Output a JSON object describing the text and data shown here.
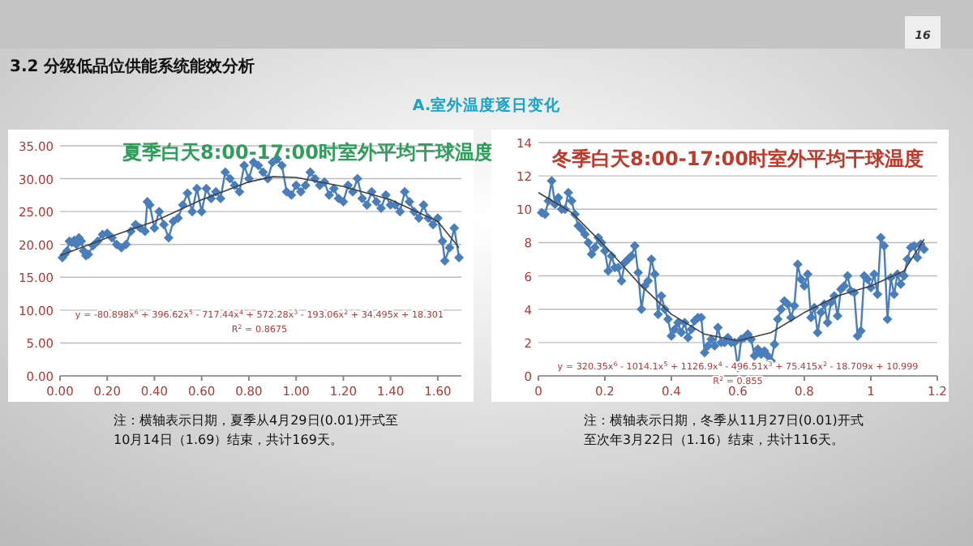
{
  "chart_data": [
    {
      "type": "line",
      "title": "夏季白天8:00-17:00时室外平均干球温度",
      "marker": "diamond",
      "grid": "y",
      "xlim": [
        0,
        1.7
      ],
      "ylim": [
        0,
        35
      ],
      "xticks": [
        {
          "value": 0,
          "label": "0.00"
        },
        {
          "value": 0.2,
          "label": "0.20"
        },
        {
          "value": 0.4,
          "label": "0.40"
        },
        {
          "value": 0.6,
          "label": "0.60"
        },
        {
          "value": 0.8,
          "label": "0.80"
        },
        {
          "value": 1.0,
          "label": "1.00"
        },
        {
          "value": 1.2,
          "label": "1.20"
        },
        {
          "value": 1.4,
          "label": "1.40"
        },
        {
          "value": 1.6,
          "label": "1.60"
        }
      ],
      "yticks": [
        {
          "value": 0,
          "label": "0.00"
        },
        {
          "value": 5,
          "label": "5.00"
        },
        {
          "value": 10,
          "label": "10.00"
        },
        {
          "value": 15,
          "label": "15.00"
        },
        {
          "value": 20,
          "label": "20.00"
        },
        {
          "value": 25,
          "label": "25.00"
        },
        {
          "value": 30,
          "label": "30.00"
        },
        {
          "value": 35,
          "label": "35.00"
        }
      ],
      "series": [
        {
          "color": "#4a7ebb",
          "x": [
            0.01,
            0.02,
            0.03,
            0.04,
            0.05,
            0.06,
            0.07,
            0.08,
            0.09,
            0.1,
            0.11,
            0.12,
            0.14,
            0.16,
            0.18,
            0.2,
            0.22,
            0.24,
            0.26,
            0.28,
            0.3,
            0.32,
            0.34,
            0.36,
            0.37,
            0.38,
            0.4,
            0.42,
            0.44,
            0.46,
            0.48,
            0.5,
            0.52,
            0.54,
            0.56,
            0.58,
            0.6,
            0.62,
            0.64,
            0.66,
            0.68,
            0.7,
            0.72,
            0.74,
            0.76,
            0.78,
            0.8,
            0.82,
            0.84,
            0.86,
            0.88,
            0.9,
            0.92,
            0.94,
            0.96,
            0.98,
            1.0,
            1.02,
            1.04,
            1.06,
            1.08,
            1.1,
            1.12,
            1.14,
            1.16,
            1.18,
            1.2,
            1.22,
            1.24,
            1.26,
            1.28,
            1.3,
            1.32,
            1.34,
            1.36,
            1.38,
            1.4,
            1.42,
            1.44,
            1.46,
            1.48,
            1.5,
            1.52,
            1.54,
            1.56,
            1.58,
            1.6,
            1.62,
            1.63,
            1.65,
            1.67,
            1.69
          ],
          "values": [
            18,
            18.5,
            19,
            20.5,
            20.3,
            20.6,
            20,
            21,
            20.5,
            19,
            18.3,
            18.5,
            19.8,
            20.5,
            21.5,
            21.7,
            21,
            20,
            19.5,
            20,
            22,
            23,
            22.5,
            22,
            26.5,
            26,
            22.5,
            25,
            23,
            21,
            23.5,
            24,
            26,
            27.8,
            25,
            28.5,
            25,
            28.5,
            27,
            28,
            27,
            31,
            30,
            29,
            28,
            32,
            30,
            32.5,
            32,
            31,
            30,
            32.5,
            33,
            32,
            28,
            27.5,
            29,
            28,
            29,
            31,
            30,
            29,
            29.5,
            27.5,
            28.5,
            27,
            26.5,
            29,
            28,
            30,
            27,
            26,
            28,
            26.5,
            25.5,
            27.5,
            26,
            26,
            25,
            28,
            26.5,
            25,
            24,
            26,
            24,
            23,
            24,
            20.5,
            17.5,
            19.5,
            22.5,
            18
          ]
        },
        {
          "type": "line",
          "color": "#404040",
          "marker": "none",
          "x": [
            0,
            0.2,
            0.4,
            0.6,
            0.8,
            0.9,
            1.0,
            1.2,
            1.4,
            1.6,
            1.69
          ],
          "values": [
            18.3,
            21,
            23.5,
            26.8,
            29.5,
            30.3,
            30.2,
            28.8,
            26.8,
            23.5,
            19.5
          ]
        }
      ],
      "annotations": [
        "3.2 分级低品位供能系统能效分析",
        "A.室外温度逐日变化",
        "16",
        "y = -80.898x$^{6}$ + 396.62x$^{5}$ - 717.44x$^{4}$ + 572.28x$^{3}$ - 193.06x$^{2}$ + 34.495x + 18.301",
        "R$^{2}$ = 0.8675",
        "注：横轴表示日期，夏季从4月29日(0.01)开式至",
        "10月14日（1.69）结束，共计169天。"
      ]
    },
    {
      "type": "line",
      "title": "冬季白天8:00-17:00时室外平均干球温度",
      "marker": "diamond",
      "grid": "y",
      "xlim": [
        0,
        1.2
      ],
      "ylim": [
        0,
        14
      ],
      "xticks": [
        0,
        0.2,
        0.4,
        0.6,
        0.8,
        1,
        1.2
      ],
      "yticks": [
        0,
        2,
        4,
        6,
        8,
        10,
        12,
        14
      ],
      "series": [
        {
          "color": "#4a7ebb",
          "x": [
            0.01,
            0.02,
            0.03,
            0.04,
            0.05,
            0.06,
            0.07,
            0.08,
            0.09,
            0.1,
            0.11,
            0.12,
            0.13,
            0.14,
            0.15,
            0.16,
            0.17,
            0.18,
            0.19,
            0.2,
            0.21,
            0.22,
            0.23,
            0.24,
            0.25,
            0.26,
            0.27,
            0.28,
            0.29,
            0.3,
            0.31,
            0.32,
            0.33,
            0.34,
            0.35,
            0.36,
            0.37,
            0.38,
            0.39,
            0.4,
            0.41,
            0.42,
            0.43,
            0.44,
            0.45,
            0.46,
            0.47,
            0.48,
            0.49,
            0.5,
            0.51,
            0.52,
            0.53,
            0.54,
            0.55,
            0.56,
            0.57,
            0.58,
            0.59,
            0.6,
            0.61,
            0.62,
            0.63,
            0.64,
            0.65,
            0.66,
            0.67,
            0.68,
            0.69,
            0.7,
            0.71,
            0.72,
            0.73,
            0.74,
            0.75,
            0.76,
            0.77,
            0.78,
            0.79,
            0.8,
            0.81,
            0.82,
            0.83,
            0.84,
            0.85,
            0.86,
            0.87,
            0.88,
            0.89,
            0.9,
            0.91,
            0.92,
            0.93,
            0.94,
            0.95,
            0.96,
            0.97,
            0.98,
            0.99,
            1.0,
            1.01,
            1.02,
            1.03,
            1.04,
            1.05,
            1.06,
            1.07,
            1.08,
            1.09,
            1.1,
            1.11,
            1.12,
            1.13,
            1.14,
            1.15,
            1.16
          ],
          "values": [
            9.8,
            9.7,
            10.5,
            11.7,
            10.3,
            10.7,
            10,
            10,
            11,
            10.5,
            9.7,
            9,
            8.8,
            8.5,
            8,
            7.3,
            7.7,
            8.3,
            8,
            7.5,
            6.3,
            7.2,
            6.5,
            6.5,
            5.7,
            6.8,
            7,
            7.2,
            7.8,
            6.2,
            4,
            5.4,
            5.7,
            7,
            6.1,
            3.7,
            4.8,
            4,
            3.4,
            2.4,
            2.8,
            3.2,
            2.6,
            3.2,
            2.3,
            2.8,
            3.3,
            3.5,
            3.5,
            1.4,
            1.8,
            2.2,
            1.8,
            2.9,
            2,
            2,
            2.3,
            2,
            2,
            0.5,
            2.2,
            2.3,
            2.5,
            2.2,
            1.2,
            1.6,
            1.3,
            1.5,
            1.2,
            0.9,
            1.9,
            3.4,
            4,
            4.5,
            4.3,
            3.5,
            4.2,
            6.7,
            5.8,
            5.4,
            6.1,
            3.5,
            4.1,
            2.6,
            3.8,
            4.3,
            3.2,
            4.4,
            4.8,
            3.6,
            5.2,
            5.4,
            6,
            5.1,
            5,
            2.4,
            2.7,
            6,
            5.8,
            5.3,
            6.1,
            4.9,
            8.3,
            7.8,
            3.4,
            5.9,
            4.9,
            6.1,
            5.5,
            6,
            7,
            7.7,
            7.8,
            7.1,
            7.9,
            7.6
          ]
        },
        {
          "type": "line",
          "color": "#404040",
          "marker": "none",
          "x": [
            0,
            0.1,
            0.2,
            0.3,
            0.4,
            0.5,
            0.6,
            0.7,
            0.8,
            0.9,
            1.0,
            1.1,
            1.16
          ],
          "values": [
            11,
            9.8,
            7.8,
            5.6,
            3.7,
            2.5,
            2.1,
            2.6,
            3.8,
            4.8,
            5.4,
            6.3,
            8.2
          ]
        }
      ],
      "annotations": [
        "y = 320.35x$^{6}$ - 1014.1x$^{5}$ + 1126.9x$^{4}$ - 496.51x$^{3}$ + 75.415x$^{2}$ - 18.709x + 10.999",
        "R$^{2}$ = 0.855",
        "注：横轴表示日期，冬季从11月27日(0.01)开式",
        "至次年3月22日（1.16）结束，共计116天。"
      ]
    }
  ]
}
